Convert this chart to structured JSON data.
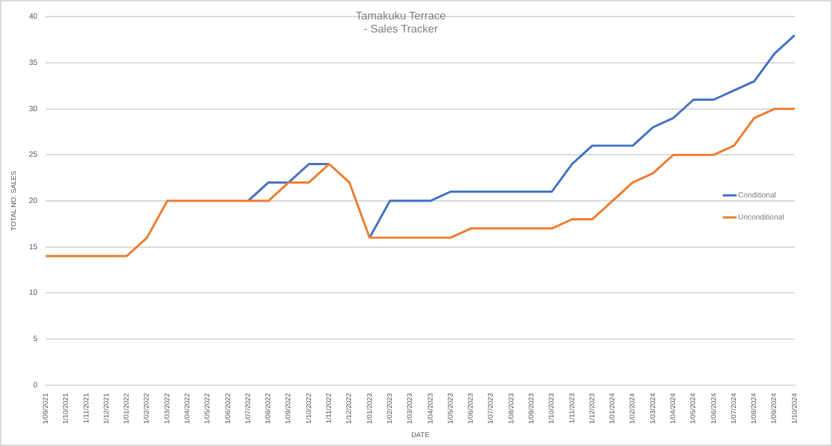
{
  "chart_data": {
    "type": "line",
    "title": "Tamakuku Terrace\n- Sales Tracker",
    "xlabel": "DATE",
    "ylabel": "TOTAL NO. SALES",
    "categories": [
      "1/09/2021",
      "1/10/2021",
      "1/11/2021",
      "1/12/2021",
      "1/01/2022",
      "1/02/2022",
      "1/03/2022",
      "1/04/2022",
      "1/05/2022",
      "1/06/2022",
      "1/07/2022",
      "1/08/2022",
      "1/09/2022",
      "1/10/2022",
      "1/11/2022",
      "1/12/2022",
      "1/01/2023",
      "1/02/2023",
      "1/03/2023",
      "1/04/2023",
      "1/05/2023",
      "1/06/2023",
      "1/07/2023",
      "1/08/2023",
      "1/09/2023",
      "1/10/2023",
      "1/11/2023",
      "1/12/2023",
      "1/01/2024",
      "1/02/2024",
      "1/03/2024",
      "1/04/2024",
      "1/05/2024",
      "1/06/2024",
      "1/07/2024",
      "1/08/2024",
      "1/09/2024",
      "1/10/2024"
    ],
    "series": [
      {
        "name": "Conditional",
        "color": "#4472c4",
        "values": [
          null,
          null,
          null,
          null,
          null,
          null,
          null,
          null,
          null,
          null,
          20,
          22,
          22,
          24,
          24,
          null,
          16,
          20,
          20,
          20,
          21,
          21,
          21,
          21,
          21,
          21,
          24,
          26,
          26,
          26,
          28,
          29,
          31,
          31,
          32,
          33,
          36,
          38
        ]
      },
      {
        "name": "Unconditional",
        "color": "#ed7d31",
        "values": [
          14,
          14,
          14,
          14,
          14,
          16,
          20,
          20,
          20,
          20,
          20,
          20,
          22,
          22,
          24,
          22,
          16,
          16,
          16,
          16,
          16,
          17,
          17,
          17,
          17,
          17,
          18,
          18,
          20,
          22,
          23,
          25,
          25,
          25,
          26,
          29,
          30,
          30
        ]
      }
    ],
    "ylim": [
      0,
      40
    ],
    "yticks": [
      0,
      5,
      10,
      15,
      20,
      25,
      30,
      35,
      40
    ],
    "grid": "y",
    "legend": "right",
    "marker": "none",
    "line_style": "solid"
  }
}
